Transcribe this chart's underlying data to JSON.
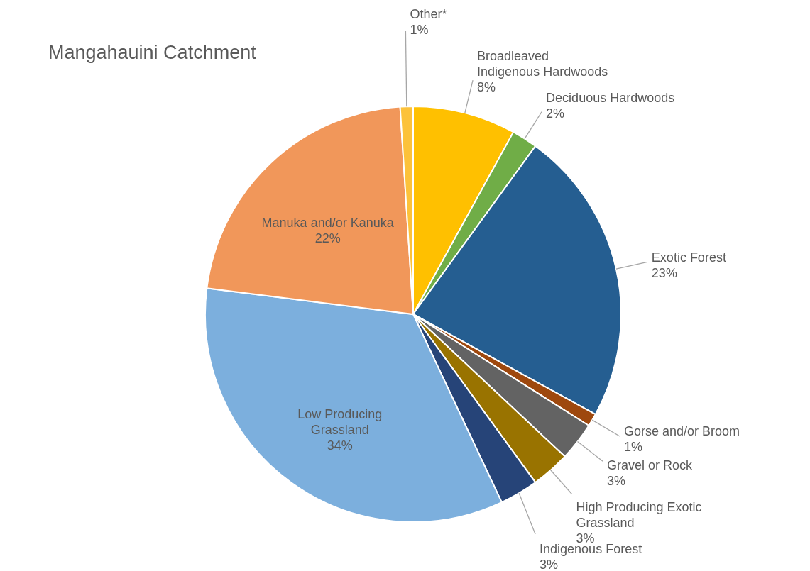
{
  "chart_data": {
    "type": "pie",
    "title": "Mangahauini Catchment",
    "categories": [
      "Broadleaved Indigenous Hardwoods",
      "Deciduous Hardwoods",
      "Exotic Forest",
      "Gorse and/or Broom",
      "Gravel or Rock",
      "High Producing Exotic Grassland",
      "Indigenous Forest",
      "Low Producing Grassland",
      "Manuka and/or Kanuka",
      "Other*"
    ],
    "values": [
      8,
      2,
      23,
      1,
      3,
      3,
      3,
      34,
      22,
      1
    ],
    "value_labels": [
      "8%",
      "2%",
      "23%",
      "1%",
      "3%",
      "3%",
      "3%",
      "34%",
      "22%",
      "1%"
    ],
    "colors": [
      "#ffc000",
      "#70ad47",
      "#255e91",
      "#9e480e",
      "#636363",
      "#997300",
      "#264478",
      "#7cafdd",
      "#f1975a",
      "#fcc23a"
    ]
  }
}
